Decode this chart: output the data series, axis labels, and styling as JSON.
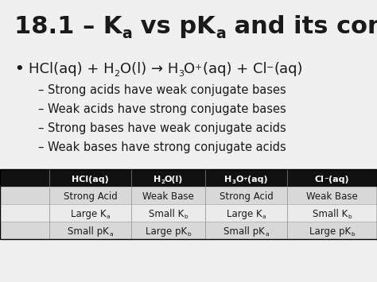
{
  "bg_color": "#f0f0f0",
  "title_color": "#1a1a1a",
  "text_color": "#1a1a1a",
  "table_header_bg": "#111111",
  "table_header_fg": "#ffffff",
  "table_row_colors": [
    "#d8d8d8",
    "#ebebeb",
    "#d8d8d8"
  ],
  "table_border_color": "#000000",
  "sub_bullets": [
    "– Strong acids have weak conjugate bases",
    "– Weak acids have strong conjugate bases",
    "– Strong bases have weak conjugate acids",
    "– Weak bases have strong conjugate acids"
  ]
}
